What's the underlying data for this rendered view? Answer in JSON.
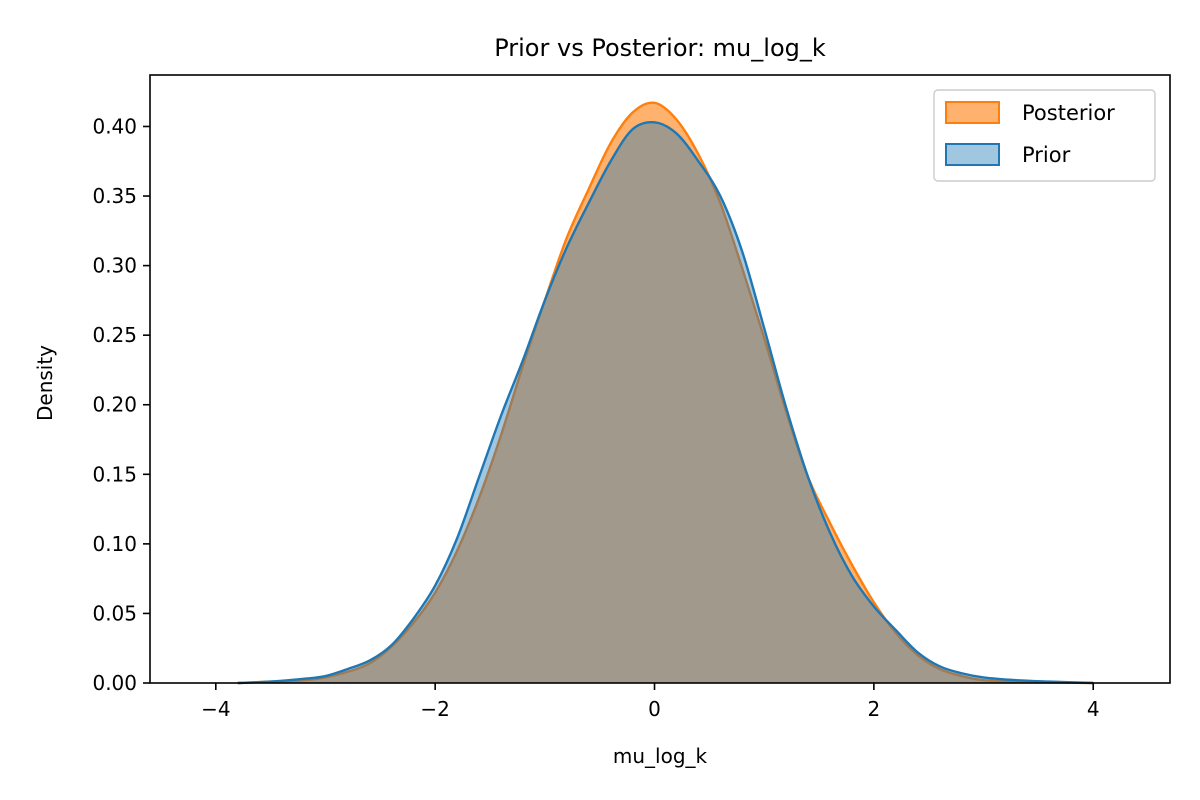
{
  "chart_data": {
    "type": "area",
    "title": "Prior vs Posterior: mu_log_k",
    "xlabel": "mu_log_k",
    "ylabel": "Density",
    "xlim": [
      -4.6,
      4.7
    ],
    "ylim": [
      0,
      0.437
    ],
    "xticks": [
      -4,
      -2,
      0,
      2,
      4
    ],
    "xtick_labels": [
      "−4",
      "−2",
      "0",
      "2",
      "4"
    ],
    "yticks": [
      0,
      0.05,
      0.1,
      0.15,
      0.2,
      0.25,
      0.3,
      0.35,
      0.4
    ],
    "ytick_labels": [
      "0.00",
      "0.05",
      "0.10",
      "0.15",
      "0.20",
      "0.25",
      "0.30",
      "0.35",
      "0.40"
    ],
    "grid": false,
    "legend_position": "top-right",
    "series": [
      {
        "name": "Posterior",
        "color": "#ff7f0e",
        "fill_opacity": 0.6,
        "x": [
          -3.8,
          -3.5,
          -3.2,
          -3.0,
          -2.8,
          -2.6,
          -2.4,
          -2.2,
          -2.0,
          -1.8,
          -1.6,
          -1.4,
          -1.2,
          -1.0,
          -0.8,
          -0.6,
          -0.4,
          -0.2,
          0.0,
          0.2,
          0.4,
          0.6,
          0.8,
          1.0,
          1.2,
          1.4,
          1.6,
          1.8,
          2.0,
          2.2,
          2.4,
          2.6,
          2.8,
          3.0,
          3.3,
          3.6,
          4.0
        ],
        "y": [
          0.0,
          0.001,
          0.002,
          0.004,
          0.008,
          0.014,
          0.026,
          0.043,
          0.065,
          0.095,
          0.133,
          0.178,
          0.228,
          0.275,
          0.32,
          0.355,
          0.388,
          0.41,
          0.417,
          0.405,
          0.38,
          0.345,
          0.298,
          0.248,
          0.195,
          0.148,
          0.115,
          0.085,
          0.058,
          0.036,
          0.02,
          0.01,
          0.005,
          0.002,
          0.001,
          0.0005,
          0.0
        ]
      },
      {
        "name": "Prior",
        "color": "#1f77b4",
        "fill_opacity": 0.42,
        "x": [
          -3.8,
          -3.5,
          -3.2,
          -3.0,
          -2.8,
          -2.6,
          -2.4,
          -2.2,
          -2.0,
          -1.8,
          -1.6,
          -1.4,
          -1.2,
          -1.0,
          -0.8,
          -0.6,
          -0.4,
          -0.2,
          0.0,
          0.2,
          0.4,
          0.6,
          0.8,
          1.0,
          1.2,
          1.4,
          1.6,
          1.8,
          2.0,
          2.2,
          2.4,
          2.6,
          2.8,
          3.0,
          3.3,
          3.6,
          4.0
        ],
        "y": [
          0.0,
          0.001,
          0.003,
          0.005,
          0.01,
          0.016,
          0.027,
          0.046,
          0.07,
          0.104,
          0.148,
          0.192,
          0.232,
          0.275,
          0.313,
          0.345,
          0.375,
          0.398,
          0.403,
          0.395,
          0.375,
          0.35,
          0.31,
          0.255,
          0.198,
          0.148,
          0.108,
          0.077,
          0.055,
          0.038,
          0.022,
          0.012,
          0.007,
          0.004,
          0.002,
          0.001,
          0.0
        ]
      }
    ]
  }
}
